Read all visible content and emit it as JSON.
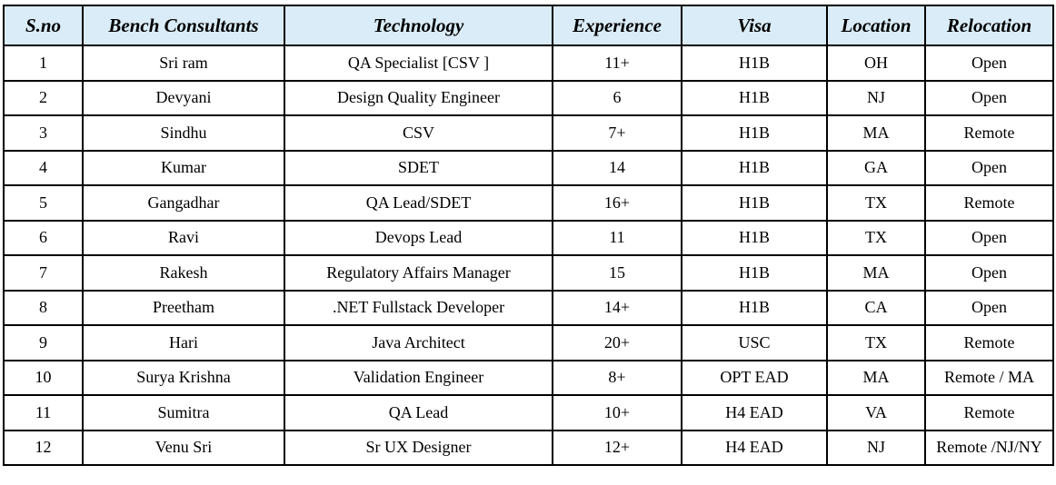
{
  "table": {
    "header_bg": "#d9ecf7",
    "columns": [
      "S.no",
      "Bench Consultants",
      "Technology",
      "Experience",
      "Visa",
      "Location",
      "Relocation"
    ],
    "rows": [
      [
        "1",
        "Sri ram",
        "QA Specialist [CSV ]",
        "11+",
        "H1B",
        "OH",
        "Open"
      ],
      [
        "2",
        "Devyani",
        "Design Quality Engineer",
        "6",
        "H1B",
        "NJ",
        "Open"
      ],
      [
        "3",
        "Sindhu",
        "CSV",
        "7+",
        "H1B",
        "MA",
        "Remote"
      ],
      [
        "4",
        "Kumar",
        "SDET",
        "14",
        "H1B",
        "GA",
        "Open"
      ],
      [
        "5",
        "Gangadhar",
        "QA Lead/SDET",
        "16+",
        "H1B",
        "TX",
        "Remote"
      ],
      [
        "6",
        "Ravi",
        "Devops Lead",
        "11",
        "H1B",
        "TX",
        "Open"
      ],
      [
        "7",
        "Rakesh",
        "Regulatory Affairs Manager",
        "15",
        "H1B",
        "MA",
        "Open"
      ],
      [
        "8",
        "Preetham",
        ".NET Fullstack Developer",
        "14+",
        "H1B",
        "CA",
        "Open"
      ],
      [
        "9",
        "Hari",
        "Java Architect",
        "20+",
        "USC",
        "TX",
        "Remote"
      ],
      [
        "10",
        "Surya Krishna",
        "Validation Engineer",
        "8+",
        "OPT EAD",
        "MA",
        "Remote / MA"
      ],
      [
        "11",
        "Sumitra",
        "QA Lead",
        "10+",
        "H4 EAD",
        "VA",
        "Remote"
      ],
      [
        "12",
        "Venu Sri",
        "Sr UX Designer",
        "12+",
        "H4 EAD",
        "NJ",
        "Remote /NJ/NY"
      ]
    ]
  }
}
